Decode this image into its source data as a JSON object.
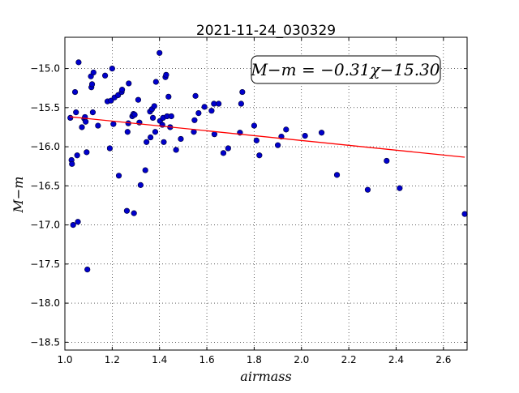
{
  "chart_data": {
    "type": "scatter",
    "title": "2021-11-24_030329",
    "xlabel": "airmass",
    "ylabel": "M−m",
    "xlim": [
      1.0,
      2.7
    ],
    "ylim": [
      -18.6,
      -14.6
    ],
    "xticks": [
      1.0,
      1.2,
      1.4,
      1.6,
      1.8,
      2.0,
      2.2,
      2.4,
      2.6
    ],
    "xtick_labels": [
      "1.0",
      "1.2",
      "1.4",
      "1.6",
      "1.8",
      "2.0",
      "2.2",
      "2.4",
      "2.6"
    ],
    "yticks": [
      -15.0,
      -15.5,
      -16.0,
      -16.5,
      -17.0,
      -17.5,
      -18.0,
      -18.5
    ],
    "ytick_labels": [
      "−15.0",
      "−15.5",
      "−16.0",
      "−16.5",
      "−17.0",
      "−17.5",
      "−18.0",
      "−18.5"
    ],
    "grid": true,
    "annotation": "M−m = −0.31χ−15.30",
    "fit": {
      "slope": -0.31,
      "intercept": -15.3,
      "x_range": [
        1.02,
        2.69
      ],
      "color": "#ff0000"
    },
    "marker_color": "#0000cc",
    "points": [
      [
        1.023,
        -15.63
      ],
      [
        1.028,
        -16.17
      ],
      [
        1.03,
        -16.22
      ],
      [
        1.035,
        -17.0
      ],
      [
        1.043,
        -15.3
      ],
      [
        1.047,
        -15.56
      ],
      [
        1.052,
        -16.11
      ],
      [
        1.055,
        -16.96
      ],
      [
        1.058,
        -14.92
      ],
      [
        1.072,
        -15.75
      ],
      [
        1.082,
        -15.64
      ],
      [
        1.085,
        -15.62
      ],
      [
        1.088,
        -15.68
      ],
      [
        1.092,
        -16.07
      ],
      [
        1.095,
        -17.57
      ],
      [
        1.11,
        -15.1
      ],
      [
        1.112,
        -15.24
      ],
      [
        1.115,
        -15.2
      ],
      [
        1.118,
        -15.56
      ],
      [
        1.121,
        -15.05
      ],
      [
        1.14,
        -15.73
      ],
      [
        1.17,
        -15.09
      ],
      [
        1.18,
        -15.42
      ],
      [
        1.19,
        -16.02
      ],
      [
        1.195,
        -15.41
      ],
      [
        1.2,
        -15.0
      ],
      [
        1.205,
        -15.71
      ],
      [
        1.21,
        -15.37
      ],
      [
        1.225,
        -15.34
      ],
      [
        1.228,
        -16.37
      ],
      [
        1.24,
        -15.3
      ],
      [
        1.242,
        -15.27
      ],
      [
        1.262,
        -16.82
      ],
      [
        1.265,
        -15.81
      ],
      [
        1.268,
        -15.7
      ],
      [
        1.27,
        -15.19
      ],
      [
        1.285,
        -15.61
      ],
      [
        1.29,
        -15.58
      ],
      [
        1.292,
        -16.85
      ],
      [
        1.295,
        -15.59
      ],
      [
        1.31,
        -15.4
      ],
      [
        1.315,
        -15.69
      ],
      [
        1.32,
        -16.49
      ],
      [
        1.34,
        -16.3
      ],
      [
        1.345,
        -15.94
      ],
      [
        1.36,
        -15.55
      ],
      [
        1.362,
        -15.88
      ],
      [
        1.368,
        -15.52
      ],
      [
        1.372,
        -15.63
      ],
      [
        1.378,
        -15.48
      ],
      [
        1.382,
        -15.81
      ],
      [
        1.385,
        -15.17
      ],
      [
        1.4,
        -14.8
      ],
      [
        1.402,
        -15.67
      ],
      [
        1.412,
        -15.72
      ],
      [
        1.415,
        -15.63
      ],
      [
        1.418,
        -15.94
      ],
      [
        1.425,
        -15.11
      ],
      [
        1.428,
        -15.08
      ],
      [
        1.432,
        -15.61
      ],
      [
        1.438,
        -15.36
      ],
      [
        1.445,
        -15.75
      ],
      [
        1.45,
        -15.61
      ],
      [
        1.47,
        -16.04
      ],
      [
        1.49,
        -15.9
      ],
      [
        1.545,
        -15.81
      ],
      [
        1.548,
        -15.66
      ],
      [
        1.552,
        -15.35
      ],
      [
        1.565,
        -15.57
      ],
      [
        1.59,
        -15.49
      ],
      [
        1.62,
        -15.54
      ],
      [
        1.63,
        -15.45
      ],
      [
        1.632,
        -15.84
      ],
      [
        1.65,
        -15.45
      ],
      [
        1.67,
        -16.08
      ],
      [
        1.69,
        -16.02
      ],
      [
        1.74,
        -15.82
      ],
      [
        1.745,
        -15.45
      ],
      [
        1.75,
        -15.3
      ],
      [
        1.8,
        -15.73
      ],
      [
        1.81,
        -15.92
      ],
      [
        1.822,
        -16.11
      ],
      [
        1.9,
        -15.98
      ],
      [
        1.915,
        -15.87
      ],
      [
        1.935,
        -15.78
      ],
      [
        2.015,
        -15.86
      ],
      [
        2.085,
        -15.82
      ],
      [
        2.15,
        -16.36
      ],
      [
        2.28,
        -16.55
      ],
      [
        2.36,
        -16.18
      ],
      [
        2.415,
        -16.53
      ],
      [
        2.69,
        -16.86
      ]
    ]
  }
}
